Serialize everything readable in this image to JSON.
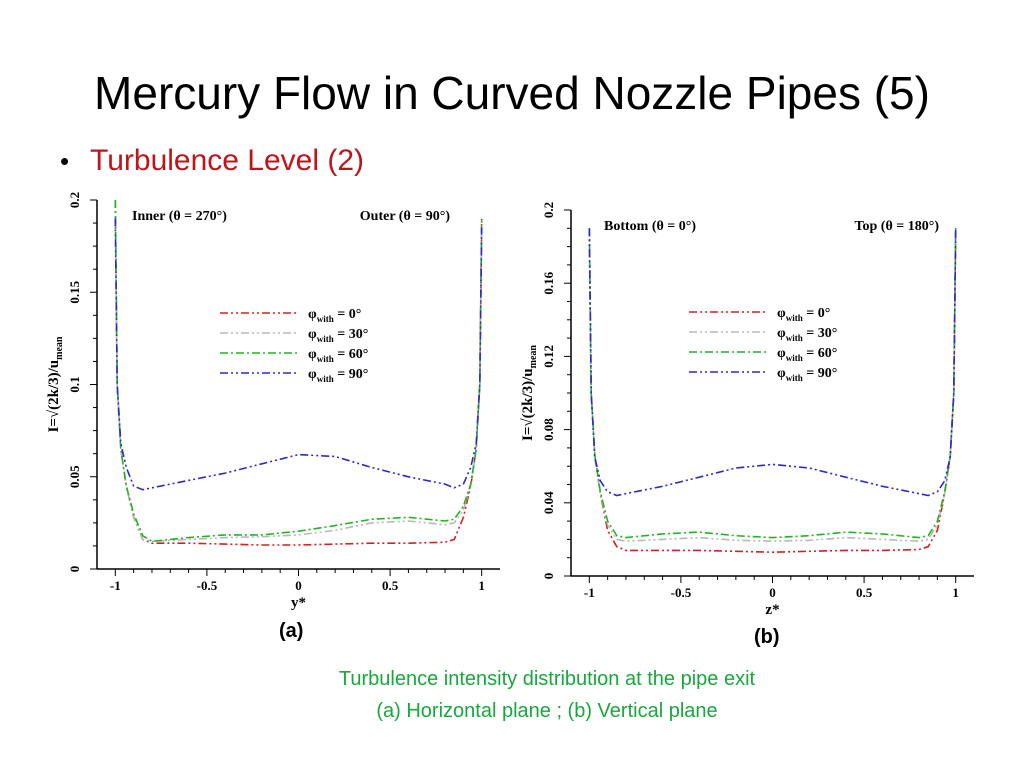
{
  "slide": {
    "title": "Mercury Flow in Curved Nozzle Pipes (5)",
    "bullet": "Turbulence Level (2)",
    "caption_line1": "Turbulence intensity distribution at the pipe exit",
    "caption_line2": "(a)  Horizontal plane ;  (b) Vertical plane",
    "panel_a_label": "(a)",
    "panel_b_label": "(b)"
  },
  "colors": {
    "title": "#000000",
    "bullet": "#c0141b",
    "caption": "#17a93b",
    "series": [
      "#d42020",
      "#b8b8b8",
      "#22b422",
      "#2a2ad0"
    ]
  },
  "chart_data": [
    {
      "type": "line",
      "panel": "(a)",
      "xlabel": "y*",
      "ylabel": "I=√(2k/3)/u",
      "ylabel_sub": "mean",
      "xlim": [
        -1.1,
        1.1
      ],
      "ylim": [
        0,
        0.2
      ],
      "xticks": [
        -1,
        -0.5,
        0,
        0.5,
        1
      ],
      "xtick_labels": [
        "-1",
        "-0.5",
        "0",
        "0.5",
        "1"
      ],
      "yticks": [
        0,
        0.05,
        0.1,
        0.15,
        0.2
      ],
      "ytick_labels": [
        "0",
        "0.05",
        "0.1",
        "0.15",
        "0.2"
      ],
      "annotations": [
        {
          "text": "Inner (θ = 270°)",
          "position": "top-left"
        },
        {
          "text": "Outer (θ = 90°)",
          "position": "top-right"
        }
      ],
      "legend_position": "center",
      "grid": false,
      "series": [
        {
          "name": "φwith = 0°",
          "legend_greek": "φ",
          "legend_sub": "with",
          "legend_value": "= 0°",
          "x": [
            -1,
            -0.99,
            -0.97,
            -0.94,
            -0.9,
            -0.85,
            -0.8,
            -0.6,
            -0.4,
            -0.2,
            0,
            0.2,
            0.4,
            0.6,
            0.8,
            0.85,
            0.9,
            0.94,
            0.97,
            0.99,
            1
          ],
          "y": [
            0.2,
            0.1,
            0.065,
            0.045,
            0.028,
            0.016,
            0.014,
            0.014,
            0.0135,
            0.013,
            0.013,
            0.0135,
            0.014,
            0.014,
            0.0145,
            0.016,
            0.028,
            0.045,
            0.065,
            0.1,
            0.19
          ]
        },
        {
          "name": "φwith = 30°",
          "legend_greek": "φ",
          "legend_sub": "with",
          "legend_value": "= 30°",
          "x": [
            -1,
            -0.99,
            -0.97,
            -0.94,
            -0.9,
            -0.85,
            -0.8,
            -0.6,
            -0.4,
            -0.2,
            0,
            0.2,
            0.4,
            0.6,
            0.8,
            0.85,
            0.9,
            0.94,
            0.97,
            0.99,
            1
          ],
          "y": [
            0.2,
            0.1,
            0.065,
            0.045,
            0.028,
            0.016,
            0.015,
            0.016,
            0.017,
            0.0175,
            0.0185,
            0.021,
            0.025,
            0.026,
            0.024,
            0.025,
            0.032,
            0.045,
            0.065,
            0.1,
            0.19
          ]
        },
        {
          "name": "φwith = 60°",
          "legend_greek": "φ",
          "legend_sub": "with",
          "legend_value": "= 60°",
          "x": [
            -1,
            -0.99,
            -0.97,
            -0.94,
            -0.9,
            -0.85,
            -0.8,
            -0.6,
            -0.4,
            -0.2,
            0,
            0.2,
            0.4,
            0.6,
            0.8,
            0.85,
            0.9,
            0.94,
            0.97,
            0.99,
            1
          ],
          "y": [
            0.2,
            0.1,
            0.065,
            0.045,
            0.03,
            0.018,
            0.015,
            0.017,
            0.0185,
            0.0185,
            0.0205,
            0.0235,
            0.027,
            0.028,
            0.026,
            0.027,
            0.034,
            0.046,
            0.065,
            0.1,
            0.19
          ]
        },
        {
          "name": "φwith = 90°",
          "legend_greek": "φ",
          "legend_sub": "with",
          "legend_value": "= 90°",
          "x": [
            -1,
            -0.99,
            -0.97,
            -0.94,
            -0.9,
            -0.85,
            -0.8,
            -0.6,
            -0.4,
            -0.2,
            0,
            0.2,
            0.4,
            0.6,
            0.8,
            0.85,
            0.9,
            0.94,
            0.97,
            0.99,
            1
          ],
          "y": [
            0.19,
            0.1,
            0.068,
            0.055,
            0.045,
            0.043,
            0.044,
            0.048,
            0.052,
            0.057,
            0.062,
            0.061,
            0.055,
            0.05,
            0.046,
            0.044,
            0.046,
            0.055,
            0.068,
            0.1,
            0.185
          ]
        }
      ]
    },
    {
      "type": "line",
      "panel": "(b)",
      "xlabel": "z*",
      "ylabel": "I=√(2k/3)/u",
      "ylabel_sub": "mean",
      "xlim": [
        -1.1,
        1.1
      ],
      "ylim": [
        0,
        0.2
      ],
      "xticks": [
        -1,
        -0.5,
        0,
        0.5,
        1
      ],
      "xtick_labels": [
        "-1",
        "-0.5",
        "0",
        "0.5",
        "1"
      ],
      "yticks": [
        0,
        0.04,
        0.08,
        0.12,
        0.16,
        0.2
      ],
      "ytick_labels": [
        "0",
        "0.04",
        "0.08",
        "0.12",
        "0.16",
        "0.2"
      ],
      "annotations": [
        {
          "text": "Bottom (θ = 0°)",
          "position": "top-left"
        },
        {
          "text": "Top (θ = 180°)",
          "position": "top-right"
        }
      ],
      "legend_position": "center",
      "grid": false,
      "series": [
        {
          "name": "φwith = 0°",
          "legend_greek": "φ",
          "legend_sub": "with",
          "legend_value": "= 0°",
          "x": [
            -1,
            -0.99,
            -0.97,
            -0.94,
            -0.9,
            -0.85,
            -0.8,
            -0.6,
            -0.4,
            -0.2,
            0,
            0.2,
            0.4,
            0.6,
            0.8,
            0.85,
            0.9,
            0.94,
            0.97,
            0.99,
            1
          ],
          "y": [
            0.19,
            0.1,
            0.065,
            0.045,
            0.025,
            0.016,
            0.014,
            0.014,
            0.014,
            0.0135,
            0.013,
            0.0135,
            0.014,
            0.014,
            0.0145,
            0.016,
            0.025,
            0.045,
            0.065,
            0.1,
            0.19
          ]
        },
        {
          "name": "φwith = 30°",
          "legend_greek": "φ",
          "legend_sub": "with",
          "legend_value": "= 30°",
          "x": [
            -1,
            -0.99,
            -0.97,
            -0.94,
            -0.9,
            -0.85,
            -0.8,
            -0.6,
            -0.4,
            -0.2,
            0,
            0.2,
            0.4,
            0.6,
            0.8,
            0.85,
            0.9,
            0.94,
            0.97,
            0.99,
            1
          ],
          "y": [
            0.19,
            0.1,
            0.065,
            0.045,
            0.028,
            0.02,
            0.019,
            0.02,
            0.021,
            0.0195,
            0.019,
            0.0195,
            0.021,
            0.02,
            0.019,
            0.02,
            0.028,
            0.045,
            0.065,
            0.1,
            0.19
          ]
        },
        {
          "name": "φwith = 60°",
          "legend_greek": "φ",
          "legend_sub": "with",
          "legend_value": "= 60°",
          "x": [
            -1,
            -0.99,
            -0.97,
            -0.94,
            -0.9,
            -0.85,
            -0.8,
            -0.6,
            -0.4,
            -0.2,
            0,
            0.2,
            0.4,
            0.6,
            0.8,
            0.85,
            0.9,
            0.94,
            0.97,
            0.99,
            1
          ],
          "y": [
            0.19,
            0.1,
            0.066,
            0.046,
            0.03,
            0.022,
            0.021,
            0.023,
            0.024,
            0.022,
            0.021,
            0.022,
            0.024,
            0.023,
            0.021,
            0.022,
            0.03,
            0.046,
            0.066,
            0.1,
            0.19
          ]
        },
        {
          "name": "φwith = 90°",
          "legend_greek": "φ",
          "legend_sub": "with",
          "legend_value": "= 90°",
          "x": [
            -1,
            -0.99,
            -0.97,
            -0.94,
            -0.9,
            -0.85,
            -0.8,
            -0.6,
            -0.4,
            -0.2,
            0,
            0.2,
            0.4,
            0.6,
            0.8,
            0.85,
            0.9,
            0.94,
            0.97,
            0.99,
            1
          ],
          "y": [
            0.19,
            0.1,
            0.065,
            0.052,
            0.046,
            0.044,
            0.045,
            0.049,
            0.054,
            0.059,
            0.061,
            0.059,
            0.054,
            0.049,
            0.045,
            0.044,
            0.046,
            0.052,
            0.065,
            0.1,
            0.19
          ]
        }
      ]
    }
  ]
}
